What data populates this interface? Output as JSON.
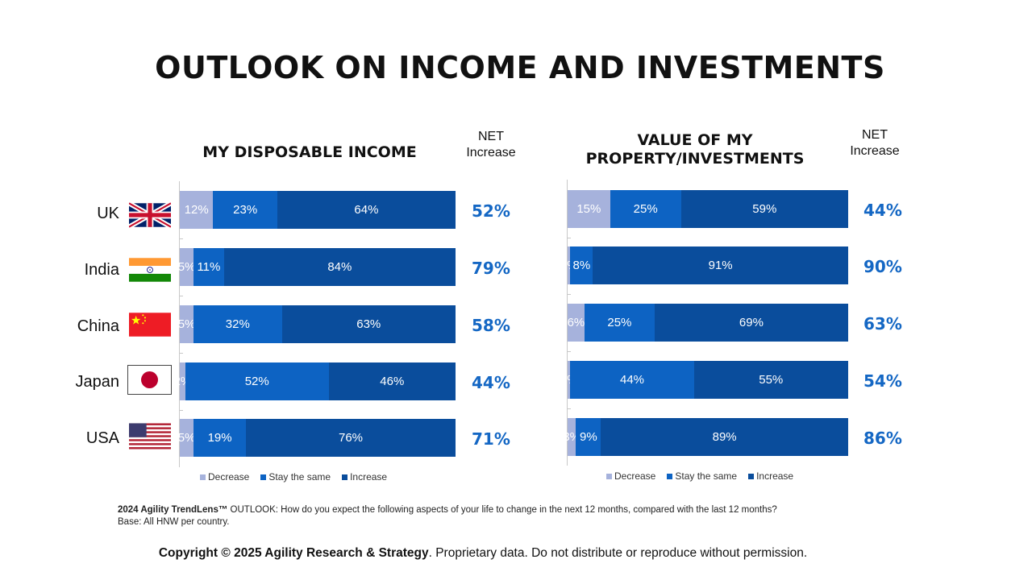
{
  "title": "OUTLOOK ON INCOME AND INVESTMENTS",
  "net_header": [
    "NET",
    "Increase"
  ],
  "colors": {
    "decrease": "#a6b2dc",
    "stay": "#0d63c3",
    "increase": "#0a4d9c",
    "net": "#1467c4"
  },
  "countries": [
    {
      "name": "UK",
      "flag": "uk-flag-icon"
    },
    {
      "name": "India",
      "flag": "india-flag-icon"
    },
    {
      "name": "China",
      "flag": "china-flag-icon"
    },
    {
      "name": "Japan",
      "flag": "japan-flag-icon"
    },
    {
      "name": "USA",
      "flag": "usa-flag-icon"
    }
  ],
  "legend": [
    "Decrease",
    "Stay the same",
    "Increase"
  ],
  "chart_data": [
    {
      "type": "bar",
      "stacked": true,
      "orientation": "horizontal",
      "title": "MY DISPOSABLE INCOME",
      "categories": [
        "UK",
        "India",
        "China",
        "Japan",
        "USA"
      ],
      "series": [
        {
          "name": "Decrease",
          "values": [
            12,
            5,
            5,
            2,
            5
          ]
        },
        {
          "name": "Stay the same",
          "values": [
            23,
            11,
            32,
            52,
            19
          ]
        },
        {
          "name": "Increase",
          "values": [
            64,
            84,
            63,
            46,
            76
          ]
        }
      ],
      "net_increase": [
        52,
        79,
        58,
        44,
        71
      ],
      "legend_position": "bottom"
    },
    {
      "type": "bar",
      "stacked": true,
      "orientation": "horizontal",
      "title_lines": [
        "VALUE OF MY",
        "PROPERTY/INVESTMENTS"
      ],
      "categories": [
        "UK",
        "India",
        "China",
        "Japan",
        "USA"
      ],
      "series": [
        {
          "name": "Decrease",
          "values": [
            15,
            1,
            6,
            1,
            3
          ]
        },
        {
          "name": "Stay the same",
          "values": [
            25,
            8,
            25,
            44,
            9
          ]
        },
        {
          "name": "Increase",
          "values": [
            59,
            91,
            69,
            55,
            89
          ]
        }
      ],
      "net_increase": [
        44,
        90,
        63,
        54,
        86
      ],
      "legend_position": "bottom"
    }
  ],
  "footnote": {
    "bold": "2024 Agility TrendLens™",
    "line1": " OUTLOOK: How do you expect the following aspects of your life to change in the next 12 months, compared with the last 12 months?",
    "line2": "Base: All HNW per country."
  },
  "copyright": {
    "bold": "Copyright © 2025 Agility Research & Strategy",
    "rest": ". Proprietary data. Do not distribute or reproduce without permission."
  }
}
